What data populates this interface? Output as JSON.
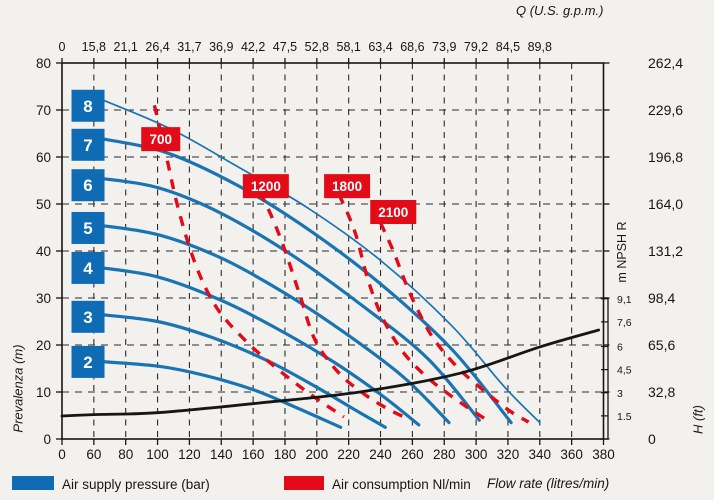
{
  "top_axis": {
    "title": "Q (U.S. g.p.m.)",
    "ticks": [
      "0",
      "15,8",
      "21,1",
      "26,4",
      "31,7",
      "36,9",
      "42,2",
      "47,5",
      "52,8",
      "58,1",
      "63,4",
      "68,6",
      "73,9",
      "79,2",
      "84,5",
      "89,8"
    ]
  },
  "bottom_axis": {
    "title": "Flow rate (litres/min)",
    "ticks": [
      "0",
      "60",
      "80",
      "100",
      "120",
      "140",
      "160",
      "180",
      "200",
      "220",
      "240",
      "260",
      "280",
      "300",
      "320",
      "340",
      "360",
      "380"
    ]
  },
  "left_axis": {
    "title": "Prevalenza (m)",
    "ticks": [
      "80",
      "70",
      "60",
      "50",
      "40",
      "30",
      "20",
      "10",
      "0"
    ]
  },
  "right_axis_ft": {
    "title": "H (ft)",
    "ticks": [
      {
        "label": "262,4",
        "m": 80
      },
      {
        "label": "229,6",
        "m": 70
      },
      {
        "label": "196,8",
        "m": 60
      },
      {
        "label": "164,0",
        "m": 50
      },
      {
        "label": "131,2",
        "m": 40
      },
      {
        "label": "98,4",
        "m": 30
      },
      {
        "label": "65,6",
        "m": 20
      },
      {
        "label": "32,8",
        "m": 10
      },
      {
        "label": "0",
        "m": 0
      }
    ]
  },
  "npsh_axis": {
    "title": "m NPSH R",
    "top_m": 30,
    "bottom_m": 0,
    "ticks": [
      {
        "label": "9,1",
        "m": 29.84
      },
      {
        "label": "7,6",
        "m": 24.92
      },
      {
        "label": "6",
        "m": 19.68
      },
      {
        "label": "4,5",
        "m": 14.76
      },
      {
        "label": "3",
        "m": 9.84
      },
      {
        "label": "1.5",
        "m": 4.92
      }
    ]
  },
  "legend": {
    "blue_label": "Air supply pressure (bar)",
    "red_label": "Air consumption Nl/min"
  },
  "colors": {
    "blue": "#0f6cb4",
    "blue_curve": "#1b74b2",
    "red": "#e30b17",
    "black_curve": "#161616",
    "grid": "#2b2b2b",
    "text": "#161616"
  },
  "chart_data": {
    "type": "line",
    "title": "",
    "xlabel": "Flow rate (litres/min)",
    "ylabel": "Prevalenza (m)",
    "ylim": [
      0,
      80
    ],
    "x_axis_note": "segmented axis: first interval 0-60, then steps of 20 up to 380",
    "series_air_supply_pressure_bar": [
      {
        "label": "2",
        "label_at": [
          49,
          16.4
        ],
        "points": [
          [
            63,
            16.5
          ],
          [
            100,
            15.5
          ],
          [
            130,
            13.5
          ],
          [
            160,
            10.5
          ],
          [
            185,
            7
          ],
          [
            205,
            4
          ],
          [
            215,
            2.5
          ]
        ]
      },
      {
        "label": "3",
        "label_at": [
          49,
          26.0
        ],
        "points": [
          [
            63,
            26.5
          ],
          [
            100,
            25
          ],
          [
            135,
            21.5
          ],
          [
            170,
            16.5
          ],
          [
            200,
            11
          ],
          [
            225,
            6
          ],
          [
            243,
            2.5
          ]
        ]
      },
      {
        "label": "4",
        "label_at": [
          49,
          36.4
        ],
        "points": [
          [
            63,
            36.5
          ],
          [
            100,
            34.5
          ],
          [
            140,
            29.5
          ],
          [
            175,
            23.5
          ],
          [
            210,
            16.5
          ],
          [
            240,
            9.5
          ],
          [
            264,
            3
          ]
        ]
      },
      {
        "label": "5",
        "label_at": [
          49,
          44.9
        ],
        "points": [
          [
            63,
            45.5
          ],
          [
            100,
            43.5
          ],
          [
            140,
            38.5
          ],
          [
            180,
            31
          ],
          [
            220,
            22
          ],
          [
            255,
            13
          ],
          [
            283,
            3.5
          ]
        ]
      },
      {
        "label": "6",
        "label_at": [
          49,
          54.0
        ],
        "points": [
          [
            63,
            55.5
          ],
          [
            100,
            53.5
          ],
          [
            140,
            48
          ],
          [
            185,
            39
          ],
          [
            230,
            28
          ],
          [
            270,
            17
          ],
          [
            302,
            4
          ]
        ]
      },
      {
        "label": "7",
        "label_at": [
          49,
          62.6
        ],
        "points": [
          [
            63,
            64
          ],
          [
            105,
            61
          ],
          [
            150,
            54
          ],
          [
            195,
            44.5
          ],
          [
            240,
            33
          ],
          [
            285,
            19
          ],
          [
            322,
            3.5
          ]
        ]
      },
      {
        "label": "8",
        "label_at": [
          49,
          70.9
        ],
        "thin": true,
        "points": [
          [
            63,
            72.5
          ],
          [
            108,
            66
          ],
          [
            150,
            58
          ],
          [
            195,
            49
          ],
          [
            240,
            38
          ],
          [
            285,
            24
          ],
          [
            318,
            11
          ],
          [
            340,
            3.5
          ]
        ]
      }
    ],
    "series_air_consumption_nl_min": [
      {
        "label": "700",
        "label_at": [
          102,
          63.8
        ],
        "points": [
          [
            98,
            71
          ],
          [
            105,
            61
          ],
          [
            113,
            49
          ],
          [
            124,
            37
          ],
          [
            137,
            28
          ],
          [
            155,
            21
          ],
          [
            175,
            15
          ],
          [
            196,
            9.5
          ],
          [
            217,
            4.7
          ]
        ]
      },
      {
        "label": "1200",
        "label_at": [
          168,
          53.8
        ],
        "points": [
          [
            158,
            56
          ],
          [
            168,
            50
          ],
          [
            178,
            42
          ],
          [
            189,
            31
          ],
          [
            199,
            21
          ],
          [
            214,
            14
          ],
          [
            230,
            9.5
          ],
          [
            244,
            6.5
          ],
          [
            256,
            4.5
          ]
        ]
      },
      {
        "label": "1800",
        "label_at": [
          219,
          53.8
        ],
        "points": [
          [
            214,
            52
          ],
          [
            224,
            44
          ],
          [
            232,
            34
          ],
          [
            241,
            26
          ],
          [
            253,
            19
          ],
          [
            268,
            13.5
          ],
          [
            285,
            9
          ],
          [
            300,
            5.5
          ],
          [
            308,
            3.8
          ]
        ]
      },
      {
        "label": "2100",
        "label_at": [
          248,
          48.3
        ],
        "points": [
          [
            240,
            46
          ],
          [
            248,
            40
          ],
          [
            256,
            33
          ],
          [
            264,
            27
          ],
          [
            274,
            21
          ],
          [
            289,
            15
          ],
          [
            306,
            10
          ],
          [
            321,
            6
          ],
          [
            333,
            3.6
          ]
        ]
      }
    ],
    "npsh_required_curve": {
      "points": [
        [
          0,
          4.9
        ],
        [
          60,
          5.2
        ],
        [
          100,
          5.6
        ],
        [
          165,
          7.7
        ],
        [
          227,
          10
        ],
        [
          290,
          14
        ],
        [
          340,
          19.6
        ],
        [
          377,
          23.2
        ]
      ]
    }
  }
}
